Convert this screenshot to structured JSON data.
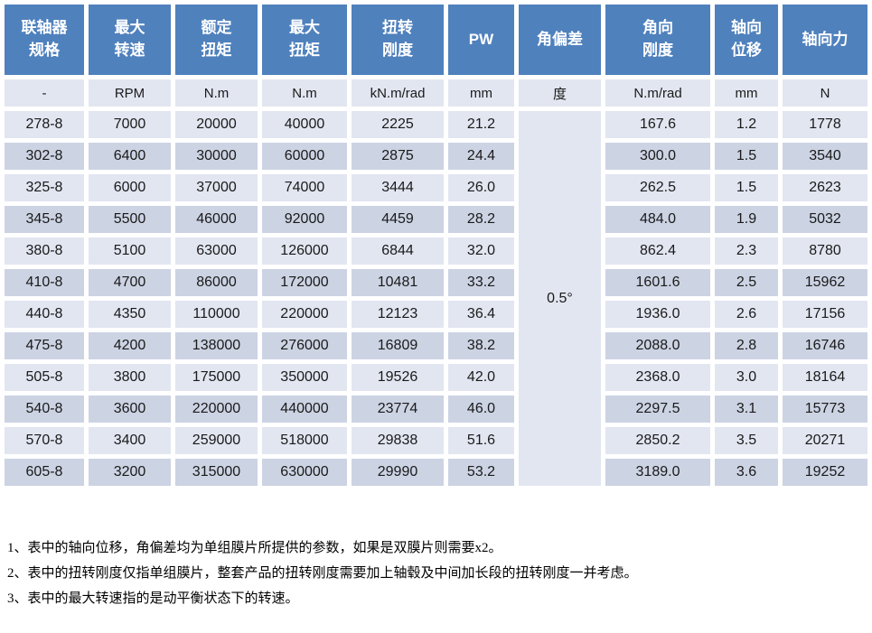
{
  "table": {
    "columns": [
      {
        "header": "联轴器\n规格",
        "unit": "-"
      },
      {
        "header": "最大\n转速",
        "unit": "RPM"
      },
      {
        "header": "额定\n扭矩",
        "unit": "N.m"
      },
      {
        "header": "最大\n扭矩",
        "unit": "N.m"
      },
      {
        "header": "扭转\n刚度",
        "unit": "kN.m/rad"
      },
      {
        "header": "PW",
        "unit": "mm"
      },
      {
        "header": "角偏差",
        "unit": "度"
      },
      {
        "header": "角向\n刚度",
        "unit": "N.m/rad"
      },
      {
        "header": "轴向\n位移",
        "unit": "mm"
      },
      {
        "header": "轴向力",
        "unit": "N"
      }
    ],
    "angular_deviation_value": "0.5°",
    "rows": [
      [
        "278-8",
        "7000",
        "20000",
        "40000",
        "2225",
        "21.2",
        "167.6",
        "1.2",
        "1778"
      ],
      [
        "302-8",
        "6400",
        "30000",
        "60000",
        "2875",
        "24.4",
        "300.0",
        "1.5",
        "3540"
      ],
      [
        "325-8",
        "6000",
        "37000",
        "74000",
        "3444",
        "26.0",
        "262.5",
        "1.5",
        "2623"
      ],
      [
        "345-8",
        "5500",
        "46000",
        "92000",
        "4459",
        "28.2",
        "484.0",
        "1.9",
        "5032"
      ],
      [
        "380-8",
        "5100",
        "63000",
        "126000",
        "6844",
        "32.0",
        "862.4",
        "2.3",
        "8780"
      ],
      [
        "410-8",
        "4700",
        "86000",
        "172000",
        "10481",
        "33.2",
        "1601.6",
        "2.5",
        "15962"
      ],
      [
        "440-8",
        "4350",
        "110000",
        "220000",
        "12123",
        "36.4",
        "1936.0",
        "2.6",
        "17156"
      ],
      [
        "475-8",
        "4200",
        "138000",
        "276000",
        "16809",
        "38.2",
        "2088.0",
        "2.8",
        "16746"
      ],
      [
        "505-8",
        "3800",
        "175000",
        "350000",
        "19526",
        "42.0",
        "2368.0",
        "3.0",
        "18164"
      ],
      [
        "540-8",
        "3600",
        "220000",
        "440000",
        "23774",
        "46.0",
        "2297.5",
        "3.1",
        "15773"
      ],
      [
        "570-8",
        "3400",
        "259000",
        "518000",
        "29838",
        "51.6",
        "2850.2",
        "3.5",
        "20271"
      ],
      [
        "605-8",
        "3200",
        "315000",
        "630000",
        "29990",
        "53.2",
        "3189.0",
        "3.6",
        "19252"
      ]
    ]
  },
  "notes": [
    "1、表中的轴向位移，角偏差均为单组膜片所提供的参数，如果是双膜片则需要x2。",
    "2、表中的扭转刚度仅指单组膜片，整套产品的扭转刚度需要加上轴毂及中间加长段的扭转刚度一并考虑。",
    "3、表中的最大转速指的是动平衡状态下的转速。"
  ],
  "colors": {
    "header_bg": "#4f81bd",
    "header_text": "#ffffff",
    "unit_row_bg": "#d3d9e8",
    "row_light_bg": "#e2e6f1",
    "row_dark_bg": "#ccd3e3"
  }
}
